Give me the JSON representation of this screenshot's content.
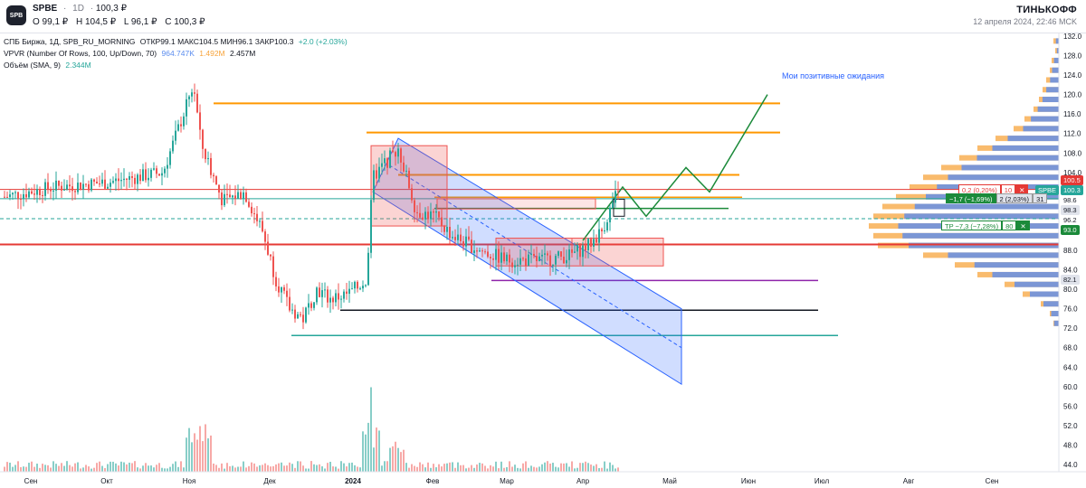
{
  "header": {
    "logo_text": "SPB",
    "symbol": "SPBE",
    "separator": "·",
    "timeframe": "1D",
    "last_price": "100,3 ₽",
    "ohlc": {
      "o": "O 99,1 ₽",
      "h": "H 104,5 ₽",
      "l": "L 96,1 ₽",
      "c": "C 100,3 ₽"
    },
    "brand": "ТИНЬКОФФ",
    "date": "12 апреля 2024, 22:46 MCK"
  },
  "legend": {
    "line1": "СПБ Биржа, 1Д, SPB_RU_MORNING",
    "line1_vals": "ОТКР99.1 МАКС104.5 МИН96.1 ЗАКР100.3",
    "line1_change": "+2.0 (+2.03%)",
    "line2": "VPVR (Number Of Rows, 100, Up/Down, 70)",
    "line2_a": "964.747K",
    "line2_b": "1.492M",
    "line2_c": "2.457M",
    "line3": "Объём (SMA, 9)",
    "line3_val": "2.344M"
  },
  "annotation": "Мои позитивные ожидания",
  "tags": {
    "p100_5": "100.5",
    "spbe": "SPBE",
    "p100_3": "100.3",
    "p98_6": "98.6",
    "p98_3": "98.3",
    "p96_2": "96.2",
    "p93_0": "93.0",
    "p82_1": "82.1"
  },
  "orders": {
    "o1_a": "0,2 (0,20%)",
    "o1_b": "10",
    "o2_a": "−1,7 (−1,69%)",
    "o2_b": "2 (2,03%)",
    "o2_c": "31",
    "o3_a": "TP −7,3 (−7,28%)",
    "o3_b": "80"
  },
  "colors": {
    "up": "#26a69a",
    "down": "#ef5350",
    "channel": "#2962ff",
    "orange": "#ff9800",
    "red": "#e53935",
    "green": "#1b8a3a",
    "purple": "#8e24aa",
    "vp_blue": "#5b8def",
    "vp_orange": "#f7a43c"
  },
  "chart_data": {
    "type": "candlestick",
    "y_axis": {
      "min": 44,
      "max": 132,
      "ticks": [
        132.0,
        128.0,
        124.0,
        120.0,
        116.0,
        112.0,
        108.0,
        104.0,
        100.0,
        96.0,
        92.0,
        88.0,
        84.0,
        80.0,
        76.0,
        72.0,
        68.0,
        64.0,
        60.0,
        56.0,
        52.0,
        48.0,
        44.0
      ]
    },
    "x_axis": {
      "labels": [
        "Сен",
        "Окт",
        "Ноя",
        "Дек",
        "2024",
        "Фев",
        "Мар",
        "Апр",
        "Май",
        "Июн",
        "Июл",
        "Авг",
        "Сен"
      ]
    },
    "horizontal_levels": [
      {
        "color": "orange",
        "value": 118.2
      },
      {
        "color": "orange",
        "value": 112.2
      },
      {
        "color": "orange",
        "value": 103.5
      },
      {
        "color": "orange",
        "value": 98.9
      },
      {
        "color": "green",
        "value": 96.6
      },
      {
        "color": "purple",
        "value": 81.8
      },
      {
        "color": "black",
        "value": 75.7
      },
      {
        "color": "teal",
        "value": 70.5
      },
      {
        "color": "red",
        "value": 100.5
      },
      {
        "color": "red",
        "value": 89.2
      },
      {
        "color": "green",
        "value": 98.6
      }
    ]
  }
}
